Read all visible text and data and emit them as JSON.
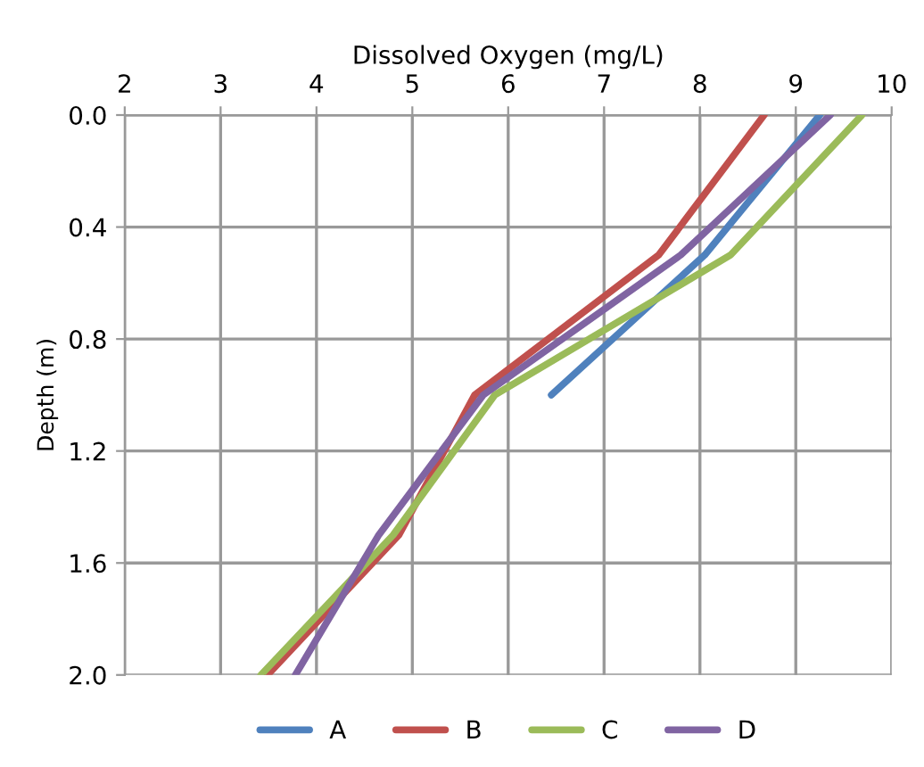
{
  "chart_data": {
    "type": "line",
    "xlabel": "Dissolved Oxygen (mg/L)",
    "ylabel": "Depth (m)",
    "xlim": [
      2,
      10
    ],
    "xticks": [
      2,
      3,
      4,
      5,
      6,
      7,
      8,
      9,
      10
    ],
    "ylim": [
      2.0,
      0.0
    ],
    "yticks": [
      {
        "value": 0,
        "label": "0.0"
      },
      {
        "value": 0.4,
        "label": "0.4"
      },
      {
        "value": 0.8,
        "label": "0.8"
      },
      {
        "value": 1.2,
        "label": "1.2"
      },
      {
        "value": 1.6,
        "label": "1.6"
      },
      {
        "value": 2.0,
        "label": "2.0"
      }
    ],
    "grid": true,
    "legend": "bottom",
    "marker": "none",
    "line_style": "solid",
    "series": [
      {
        "name": "A",
        "color": "#4f81bd",
        "x": [
          9.25,
          8.05,
          6.45
        ],
        "values": [
          0,
          0.5,
          1.0
        ]
      },
      {
        "name": "B",
        "color": "#c0504d",
        "x": [
          8.67,
          7.57,
          5.65,
          4.86,
          3.49
        ],
        "values": [
          0,
          0.5,
          1.0,
          1.5,
          2.0
        ]
      },
      {
        "name": "C",
        "color": "#9bbb59",
        "x": [
          9.69,
          8.32,
          5.86,
          4.8,
          3.42
        ],
        "values": [
          0,
          0.5,
          1.0,
          1.5,
          2.0
        ]
      },
      {
        "name": "D",
        "color": "#8064a2",
        "x": [
          9.36,
          7.8,
          5.74,
          4.65,
          3.78
        ],
        "values": [
          0,
          0.5,
          1.0,
          1.5,
          2.0
        ]
      }
    ]
  }
}
